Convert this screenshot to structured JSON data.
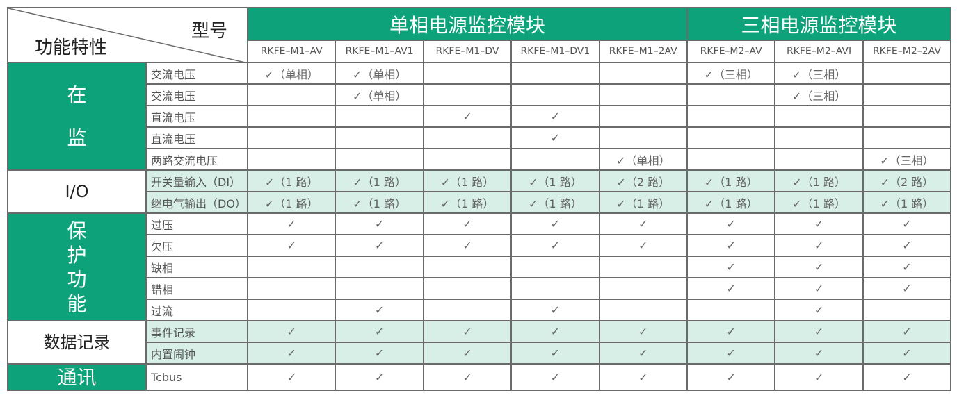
{
  "header": {
    "corner_top": "型号",
    "corner_bottom": "功能特性",
    "groups": [
      {
        "label": "单相电源监控模块",
        "span": 5
      },
      {
        "label": "三相电源监控模块",
        "span": 3
      }
    ],
    "models": [
      "RKFE–M1–AV",
      "RKFE–M1–AV1",
      "RKFE–M1–DV",
      "RKFE–M1–DV1",
      "RKFE–M1–2AV",
      "RKFE–M2–AV",
      "RKFE–M2–AVI",
      "RKFE–M2–2AV"
    ]
  },
  "colors": {
    "accent": "#0ea27a",
    "tint": "#d8efe8",
    "border": "#6a6a6a"
  },
  "sections": [
    {
      "label": [
        "在",
        "监"
      ],
      "style": "green",
      "tint": false,
      "rows": [
        {
          "feature": "交流电压",
          "cells": [
            "✓（单相）",
            "✓（单相）",
            "",
            "",
            "",
            "✓（三相）",
            "✓（三相）",
            ""
          ]
        },
        {
          "feature": "交流电压",
          "cells": [
            "",
            "✓（单相）",
            "",
            "",
            "",
            "",
            "✓（三相）",
            ""
          ]
        },
        {
          "feature": "直流电压",
          "cells": [
            "",
            "",
            "✓",
            "✓",
            "",
            "",
            "",
            ""
          ]
        },
        {
          "feature": "直流电压",
          "cells": [
            "",
            "",
            "",
            "✓",
            "",
            "",
            "",
            ""
          ]
        },
        {
          "feature": "两路交流电压",
          "cells": [
            "",
            "",
            "",
            "",
            "✓（单相）",
            "",
            "",
            "✓（三相）"
          ]
        }
      ]
    },
    {
      "label": [
        "I/O"
      ],
      "style": "white",
      "tint": true,
      "rows": [
        {
          "feature": "开关量输入（DI）",
          "cells": [
            "✓（1 路）",
            "✓（1 路）",
            "✓（1 路）",
            "✓（1 路）",
            "✓（2 路）",
            "✓（1 路）",
            "✓（1 路）",
            "✓（2 路）"
          ]
        },
        {
          "feature": "继电气输出（DO）",
          "cells": [
            "✓（1 路）",
            "✓（1 路）",
            "✓（1 路）",
            "✓（1 路）",
            "✓（1 路）",
            "✓（1 路）",
            "✓（1 路）",
            "✓（1 路）"
          ]
        }
      ]
    },
    {
      "label": [
        "保",
        "护",
        "功",
        "能"
      ],
      "style": "green",
      "tint": false,
      "rows": [
        {
          "feature": "过压",
          "cells": [
            "✓",
            "✓",
            "✓",
            "✓",
            "✓",
            "✓",
            "✓",
            "✓"
          ]
        },
        {
          "feature": "欠压",
          "cells": [
            "✓",
            "✓",
            "✓",
            "✓",
            "✓",
            "✓",
            "✓",
            "✓"
          ]
        },
        {
          "feature": "缺相",
          "cells": [
            "",
            "",
            "",
            "",
            "",
            "✓",
            "✓",
            "✓"
          ]
        },
        {
          "feature": "错相",
          "cells": [
            "",
            "",
            "",
            "",
            "",
            "✓",
            "✓",
            "✓"
          ]
        },
        {
          "feature": "过流",
          "cells": [
            "",
            "✓",
            "",
            "✓",
            "",
            "",
            "✓",
            ""
          ]
        }
      ]
    },
    {
      "label": [
        "数据记录"
      ],
      "style": "white",
      "tint": true,
      "rows": [
        {
          "feature": "事件记录",
          "cells": [
            "✓",
            "✓",
            "✓",
            "✓",
            "✓",
            "✓",
            "✓",
            "✓"
          ]
        },
        {
          "feature": "内置闹钟",
          "cells": [
            "✓",
            "✓",
            "✓",
            "✓",
            "✓",
            "✓",
            "✓",
            "✓"
          ]
        }
      ]
    },
    {
      "label": [
        "通讯"
      ],
      "style": "green",
      "tint": false,
      "rows": [
        {
          "feature": "Tcbus",
          "cells": [
            "✓",
            "✓",
            "✓",
            "✓",
            "✓",
            "✓",
            "✓",
            "✓"
          ]
        }
      ]
    }
  ]
}
